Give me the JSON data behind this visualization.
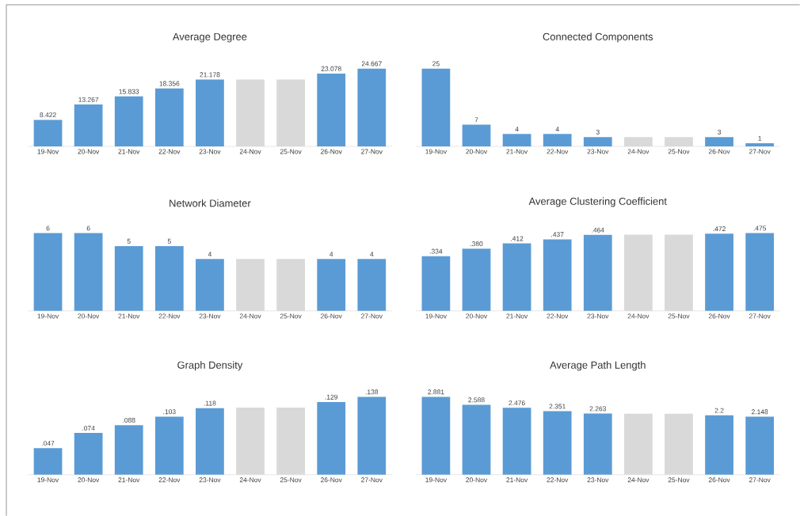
{
  "chart_data": [
    {
      "type": "bar",
      "title": "Average Degree",
      "categories": [
        "19-Nov",
        "20-Nov",
        "21-Nov",
        "22-Nov",
        "23-Nov",
        "24-Nov",
        "25-Nov",
        "26-Nov",
        "27-Nov"
      ],
      "values": [
        8.422,
        13.267,
        15.833,
        18.356,
        21.178,
        21.2,
        21.2,
        23.078,
        24.667
      ],
      "colors": [
        "#5b9bd5",
        "#5b9bd5",
        "#5b9bd5",
        "#5b9bd5",
        "#5b9bd5",
        "#d9d9d9",
        "#d9d9d9",
        "#5b9bd5",
        "#5b9bd5"
      ],
      "value_labels": [
        "8.422",
        "13.267",
        "15.833",
        "18.356",
        "21.178",
        null,
        null,
        "23.078",
        "24.667"
      ]
    },
    {
      "type": "bar",
      "title": "Connected Components",
      "categories": [
        "19-Nov",
        "20-Nov",
        "21-Nov",
        "22-Nov",
        "23-Nov",
        "24-Nov",
        "25-Nov",
        "26-Nov",
        "27-Nov"
      ],
      "values": [
        25,
        7,
        4,
        4,
        3,
        3,
        3,
        3,
        1
      ],
      "colors": [
        "#5b9bd5",
        "#5b9bd5",
        "#5b9bd5",
        "#5b9bd5",
        "#5b9bd5",
        "#d9d9d9",
        "#d9d9d9",
        "#5b9bd5",
        "#5b9bd5"
      ],
      "value_labels": [
        "25",
        "7",
        "4",
        "4",
        "3",
        null,
        null,
        "3",
        "1"
      ]
    },
    {
      "type": "bar",
      "title": "Network Diameter",
      "categories": [
        "19-Nov",
        "20-Nov",
        "21-Nov",
        "22-Nov",
        "23-Nov",
        "24-Nov",
        "25-Nov",
        "26-Nov",
        "27-Nov"
      ],
      "values": [
        6,
        6,
        5,
        5,
        4,
        4,
        4,
        4,
        4
      ],
      "colors": [
        "#5b9bd5",
        "#5b9bd5",
        "#5b9bd5",
        "#5b9bd5",
        "#5b9bd5",
        "#d9d9d9",
        "#d9d9d9",
        "#5b9bd5",
        "#5b9bd5"
      ],
      "value_labels": [
        "6",
        "6",
        "5",
        "5",
        "4",
        null,
        null,
        "4",
        "4"
      ]
    },
    {
      "type": "bar",
      "title": "Average Clustering Coefficient",
      "categories": [
        "19-Nov",
        "20-Nov",
        "21-Nov",
        "22-Nov",
        "23-Nov",
        "24-Nov",
        "25-Nov",
        "26-Nov",
        "27-Nov"
      ],
      "values": [
        0.334,
        0.38,
        0.412,
        0.437,
        0.464,
        0.466,
        0.466,
        0.472,
        0.475
      ],
      "colors": [
        "#5b9bd5",
        "#5b9bd5",
        "#5b9bd5",
        "#5b9bd5",
        "#5b9bd5",
        "#d9d9d9",
        "#d9d9d9",
        "#5b9bd5",
        "#5b9bd5"
      ],
      "value_labels": [
        ".334",
        ".380",
        ".412",
        ".437",
        ".464",
        null,
        null,
        ".472",
        ".475"
      ]
    },
    {
      "type": "bar",
      "title": "Graph Density",
      "categories": [
        "19-Nov",
        "20-Nov",
        "21-Nov",
        "22-Nov",
        "23-Nov",
        "24-Nov",
        "25-Nov",
        "26-Nov",
        "27-Nov"
      ],
      "values": [
        0.047,
        0.074,
        0.088,
        0.103,
        0.118,
        0.119,
        0.119,
        0.129,
        0.138
      ],
      "colors": [
        "#5b9bd5",
        "#5b9bd5",
        "#5b9bd5",
        "#5b9bd5",
        "#5b9bd5",
        "#d9d9d9",
        "#d9d9d9",
        "#5b9bd5",
        "#5b9bd5"
      ],
      "value_labels": [
        ".047",
        ".074",
        ".088",
        ".103",
        ".118",
        null,
        null,
        ".129",
        ".138"
      ]
    },
    {
      "type": "bar",
      "title": "Average Path Length",
      "categories": [
        "19-Nov",
        "20-Nov",
        "21-Nov",
        "22-Nov",
        "23-Nov",
        "24-Nov",
        "25-Nov",
        "26-Nov",
        "27-Nov"
      ],
      "values": [
        2.881,
        2.588,
        2.476,
        2.351,
        2.263,
        2.26,
        2.26,
        2.2,
        2.148
      ],
      "colors": [
        "#5b9bd5",
        "#5b9bd5",
        "#5b9bd5",
        "#5b9bd5",
        "#5b9bd5",
        "#d9d9d9",
        "#d9d9d9",
        "#5b9bd5",
        "#5b9bd5"
      ],
      "value_labels": [
        "2.881",
        "2.588",
        "2.476",
        "2.351",
        "2.263",
        null,
        null,
        "2.2",
        "2.148"
      ]
    }
  ]
}
